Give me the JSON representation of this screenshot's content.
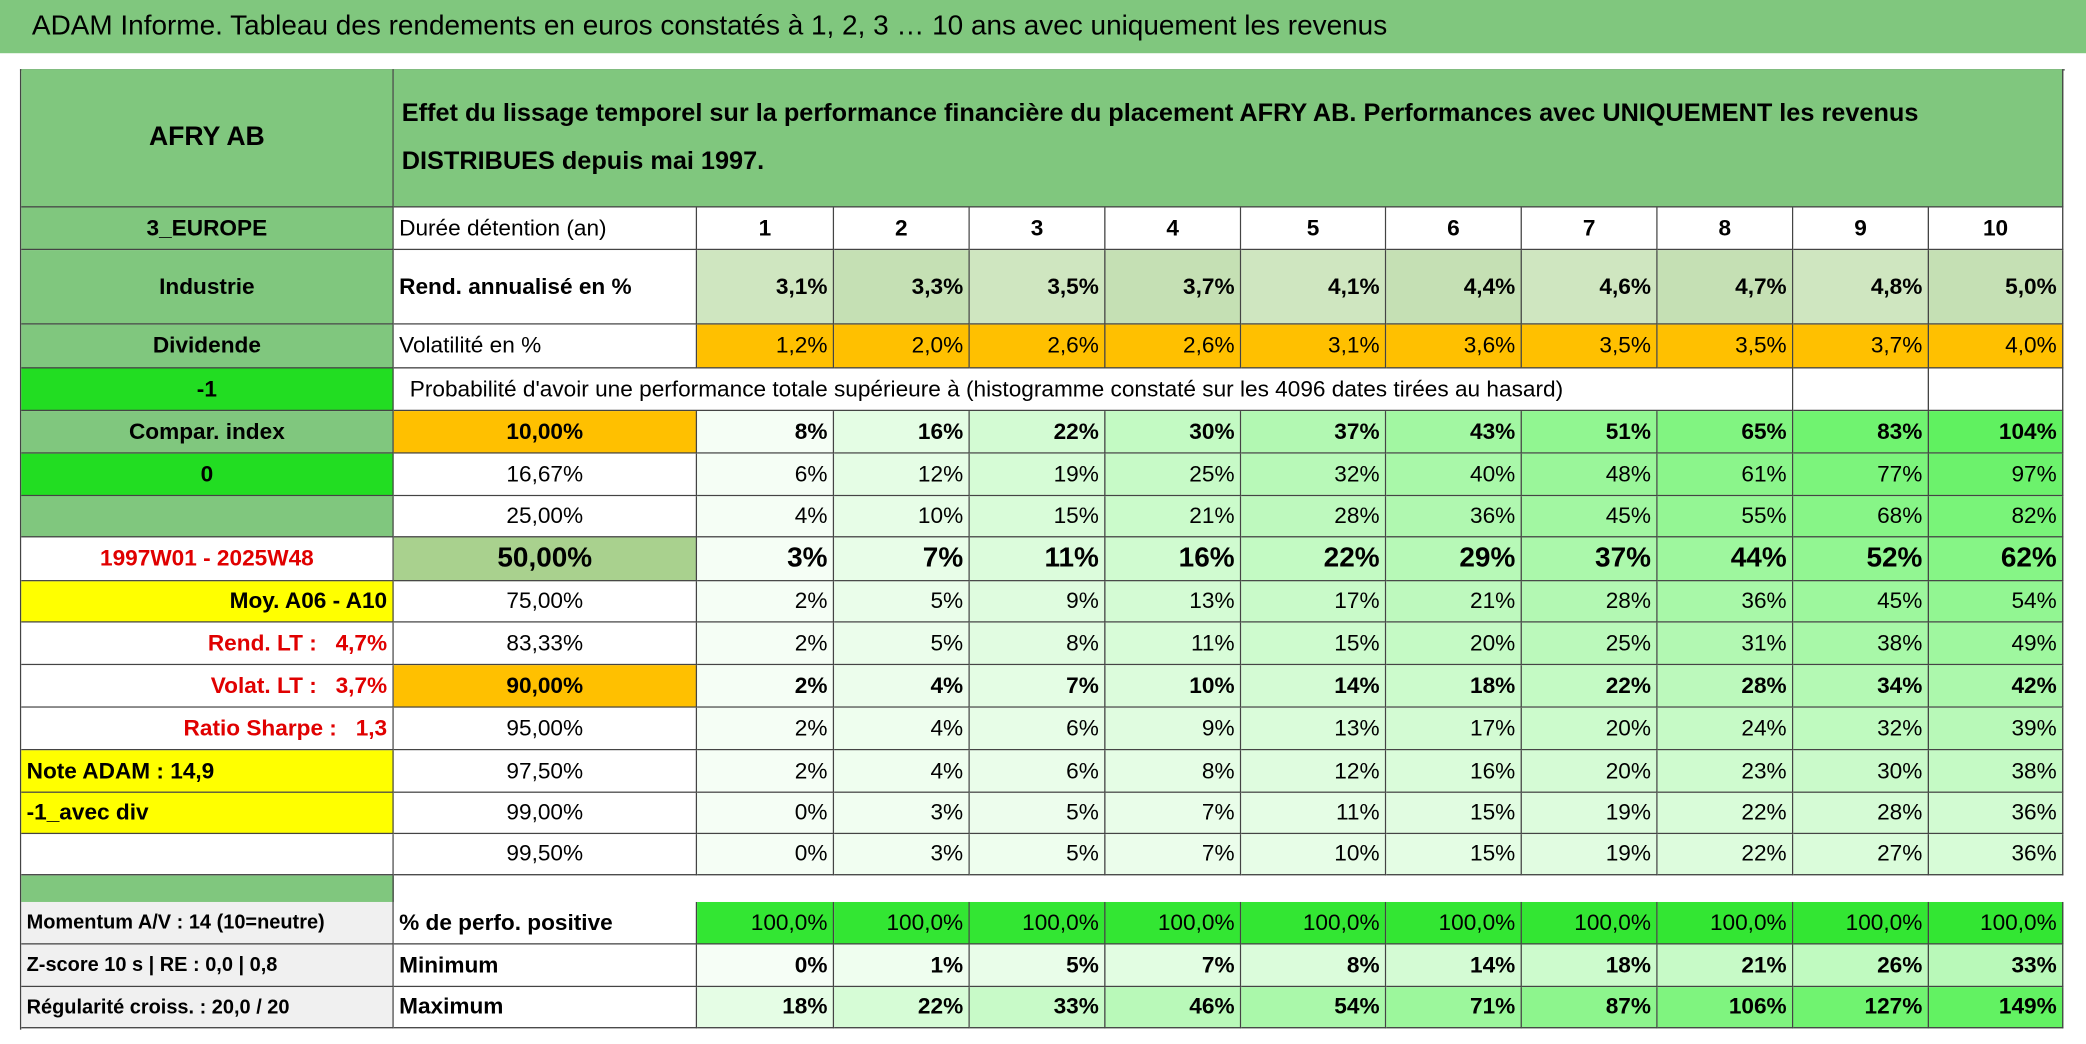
{
  "header": {
    "title": "ADAM Informe. Tableau des rendements en euros constatés à 1, 2, 3 … 10 ans avec uniquement les revenus"
  },
  "table": {
    "name": "AFRY AB",
    "description": "Effet du lissage temporel sur la performance financière du placement AFRY AB. Performances avec UNIQUEMENT les revenus DISTRIBUES depuis mai 1997.",
    "rows": [
      {
        "side": "3_EUROPE",
        "label": "Durée détention (an)",
        "values": [
          1,
          2,
          3,
          4,
          5,
          6,
          7,
          8,
          9,
          10
        ]
      },
      {
        "side": "Industrie",
        "label": "Rend. annualisé en %",
        "values": [
          "3,1%",
          "3,3%",
          "3,5%",
          "3,7%",
          "4,1%",
          "4,4%",
          "4,6%",
          "4,7%",
          "4,8%",
          "5,0%"
        ]
      },
      {
        "side": "Dividende",
        "label": "Volatilité en %",
        "values": [
          "1,2%",
          "2,0%",
          "2,6%",
          "2,6%",
          "3,1%",
          "3,6%",
          "3,5%",
          "3,5%",
          "3,7%",
          "4,0%"
        ]
      },
      {
        "side": "-1",
        "label": "Probabilité d'avoir une performance totale supérieure à (histogramme constaté sur les 4096 dates tirées au hasard)"
      },
      {
        "side": "Compar. index",
        "label": "10,00%",
        "values": [
          "8%",
          "16%",
          "22%",
          "30%",
          "37%",
          "43%",
          "51%",
          "65%",
          "83%",
          "104%"
        ]
      },
      {
        "side": "0",
        "label": "16,67%",
        "values": [
          "6%",
          "12%",
          "19%",
          "25%",
          "32%",
          "40%",
          "48%",
          "61%",
          "77%",
          "97%"
        ]
      },
      {
        "label": "25,00%",
        "values": [
          "4%",
          "10%",
          "15%",
          "21%",
          "28%",
          "36%",
          "45%",
          "55%",
          "68%",
          "82%"
        ]
      },
      {
        "side": "1997W01 - 2025W48",
        "label": "50,00%",
        "values": [
          "3%",
          "7%",
          "11%",
          "16%",
          "22%",
          "29%",
          "37%",
          "44%",
          "52%",
          "62%"
        ]
      },
      {
        "side": "Moy. A06 - A10",
        "label": "75,00%",
        "values": [
          "2%",
          "5%",
          "9%",
          "13%",
          "17%",
          "21%",
          "28%",
          "36%",
          "45%",
          "54%"
        ]
      },
      {
        "side": "Rend. LT :   4,7%",
        "label": "83,33%",
        "values": [
          "2%",
          "5%",
          "8%",
          "11%",
          "15%",
          "20%",
          "25%",
          "31%",
          "38%",
          "49%"
        ]
      },
      {
        "side": "Volat. LT :   3,7%",
        "label": "90,00%",
        "values": [
          "2%",
          "4%",
          "7%",
          "10%",
          "14%",
          "18%",
          "22%",
          "28%",
          "34%",
          "42%"
        ]
      },
      {
        "side": "Ratio Sharpe :   1,3",
        "label": "95,00%",
        "values": [
          "2%",
          "4%",
          "6%",
          "9%",
          "13%",
          "17%",
          "20%",
          "24%",
          "32%",
          "39%"
        ]
      },
      {
        "side": "Note ADAM : 14,9",
        "label": "97,50%",
        "values": [
          "2%",
          "4%",
          "6%",
          "8%",
          "12%",
          "16%",
          "20%",
          "23%",
          "30%",
          "38%"
        ]
      },
      {
        "side": "-1_avec div",
        "label": "99,00%",
        "values": [
          "0%",
          "3%",
          "5%",
          "7%",
          "11%",
          "15%",
          "19%",
          "22%",
          "28%",
          "36%"
        ]
      },
      {
        "label": "99,50%",
        "values": [
          "0%",
          "3%",
          "5%",
          "7%",
          "10%",
          "15%",
          "19%",
          "22%",
          "27%",
          "36%"
        ]
      },
      {
        "side": "Momentum A/V : 14 (10=neutre)",
        "label": "% de perfo. positive",
        "values": [
          "100,0%",
          "100,0%",
          "100,0%",
          "100,0%",
          "100,0%",
          "100,0%",
          "100,0%",
          "100,0%",
          "100,0%",
          "100,0%"
        ]
      },
      {
        "side": "Z-score 10 s | RE : 0,0 | 0,8",
        "label": "Minimum",
        "values": [
          "0%",
          "1%",
          "5%",
          "7%",
          "8%",
          "14%",
          "18%",
          "21%",
          "26%",
          "33%"
        ]
      },
      {
        "side": "Régularité croiss. : 20,0 / 20",
        "label": "Maximum",
        "values": [
          "18%",
          "22%",
          "33%",
          "46%",
          "54%",
          "71%",
          "87%",
          "106%",
          "127%",
          "149%"
        ]
      }
    ]
  }
}
